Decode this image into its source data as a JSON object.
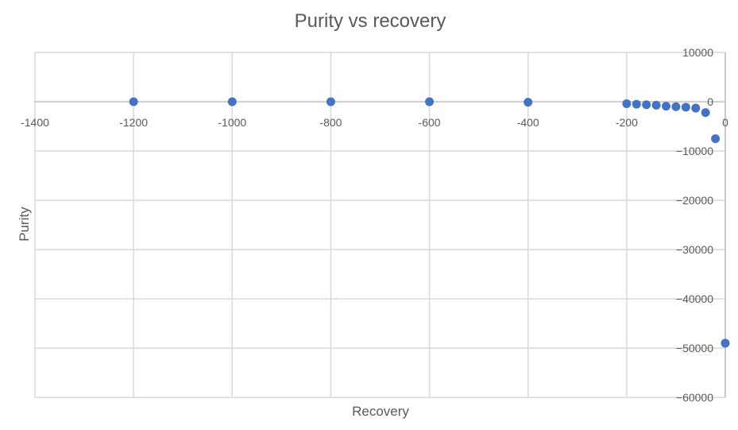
{
  "chart_data": {
    "type": "scatter",
    "title": "Purity vs recovery",
    "xlabel": "Recovery",
    "ylabel": "Purity",
    "xlim": [
      -1400,
      0
    ],
    "ylim": [
      -60000,
      10000
    ],
    "x_ticks": [
      -1400,
      -1200,
      -1000,
      -800,
      -600,
      -400,
      -200,
      0
    ],
    "y_ticks": [
      10000,
      0,
      -10000,
      -20000,
      -30000,
      -40000,
      -50000,
      -60000
    ],
    "x_tick_labels": [
      "-1400",
      "-1200",
      "-1000",
      "-800",
      "-600",
      "-400",
      "-200",
      "0"
    ],
    "y_tick_labels": [
      "10000",
      "0",
      "−10000",
      "−20000",
      "−30000",
      "−40000",
      "−50000",
      "−60000"
    ],
    "grid": true,
    "legend": "none",
    "series": [
      {
        "x": [
          -1200,
          -1000,
          -800,
          -600,
          -400,
          -200,
          -180,
          -160,
          -140,
          -120,
          -100,
          -80,
          -60,
          -40,
          -20,
          0
        ],
        "y": [
          0,
          0,
          0,
          0,
          -100,
          -400,
          -500,
          -600,
          -700,
          -900,
          -1000,
          -1100,
          -1300,
          -2200,
          -7500,
          -49000
        ]
      }
    ],
    "colors": {
      "marker": "#4472c4",
      "grid": "#d9d9d9",
      "text": "#595959"
    }
  }
}
